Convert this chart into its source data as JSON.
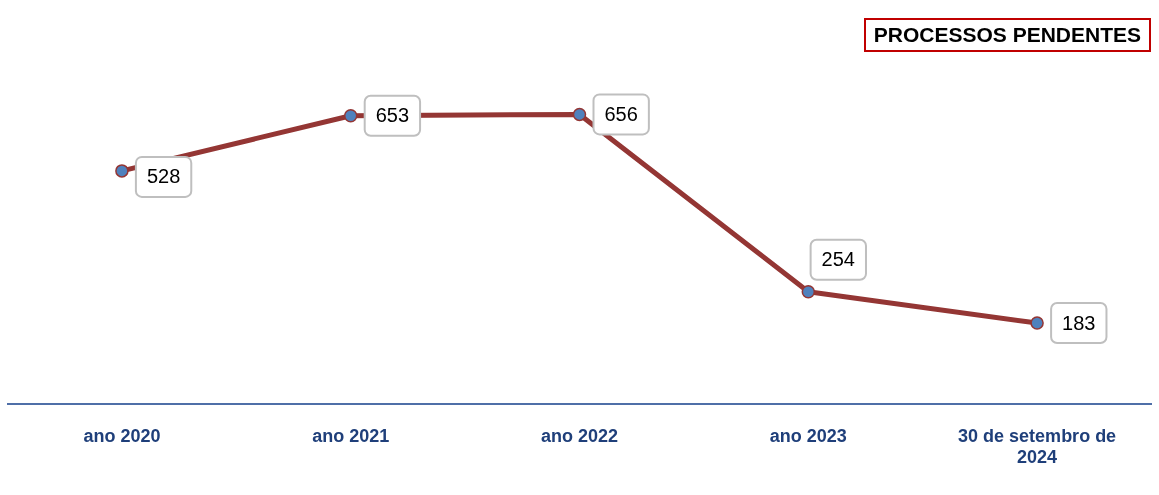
{
  "chart_data": {
    "type": "line",
    "title": "PROCESSOS PENDENTES",
    "categories": [
      "ano 2020",
      "ano 2021",
      "ano 2022",
      "ano 2023",
      "30 de setembro de 2024"
    ],
    "series": [
      {
        "color": "#943634",
        "values": [
          528,
          653,
          656,
          254,
          183
        ]
      }
    ],
    "tick_labels": "x",
    "grid": false,
    "legend": false,
    "marker": "circle",
    "line_style": "solid",
    "data_labels": true
  }
}
